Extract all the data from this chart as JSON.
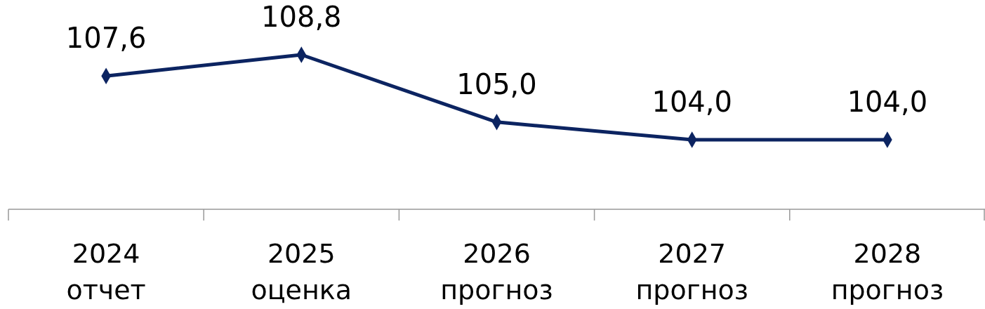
{
  "chart_data": {
    "type": "line",
    "categories": [
      "2024\nотчет",
      "2025\nоценка",
      "2026\nпрогноз",
      "2027\nпрогноз",
      "2028\nпрогноз"
    ],
    "series": [
      {
        "color": "#0c2461",
        "values": [
          107.6,
          108.8,
          105.0,
          104.0,
          104.0
        ],
        "value_labels": [
          "107,6",
          "108,8",
          "105,0",
          "104,0",
          "104,0"
        ]
      }
    ],
    "marker": "diamond",
    "line_style": "solid"
  }
}
